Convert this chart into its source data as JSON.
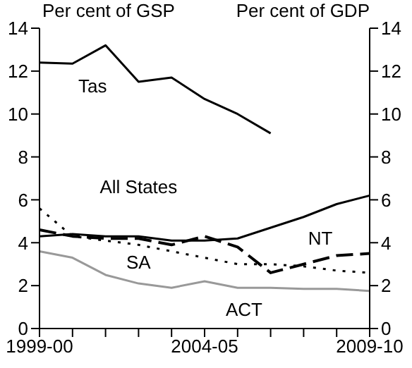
{
  "chart_data": {
    "type": "line",
    "ylabel": "Per cent of GSP",
    "y2label": "Per cent of GDP",
    "categories": [
      "1999-00",
      null,
      null,
      null,
      null,
      "2004-05",
      null,
      null,
      null,
      null,
      "2009-10"
    ],
    "series": [
      {
        "name": "Tas",
        "color": "#000000",
        "line_style": "solid",
        "values": [
          12.4,
          12.35,
          13.2,
          11.5,
          11.7,
          10.7,
          10.0,
          9.1,
          null,
          null,
          null
        ]
      },
      {
        "name": "All States",
        "color": "#000000",
        "line_style": "solid",
        "values": [
          4.3,
          4.4,
          4.3,
          4.3,
          4.1,
          4.1,
          4.2,
          4.7,
          5.2,
          5.8,
          6.2
        ]
      },
      {
        "name": "NT",
        "color": "#000000",
        "line_style": "dashed",
        "values": [
          4.6,
          4.3,
          4.2,
          4.2,
          3.9,
          4.3,
          3.8,
          2.6,
          3.0,
          3.4,
          3.5
        ]
      },
      {
        "name": "SA",
        "color": "#000000",
        "line_style": "dotted",
        "values": [
          5.6,
          4.3,
          4.1,
          3.9,
          3.6,
          3.3,
          3.0,
          3.0,
          2.9,
          2.7,
          2.6
        ]
      },
      {
        "name": "ACT",
        "color": "#999999",
        "line_style": "solid",
        "values": [
          3.6,
          3.3,
          2.5,
          2.1,
          1.9,
          2.2,
          1.9,
          1.9,
          1.85,
          1.85,
          1.75
        ]
      }
    ],
    "ylim": [
      0,
      14
    ],
    "yticks": [
      0,
      2,
      4,
      6,
      8,
      10,
      12,
      14
    ],
    "y2lim": [
      0,
      14
    ],
    "y2ticks": [
      0,
      2,
      4,
      6,
      8,
      10,
      12,
      14
    ],
    "marker": "none"
  }
}
